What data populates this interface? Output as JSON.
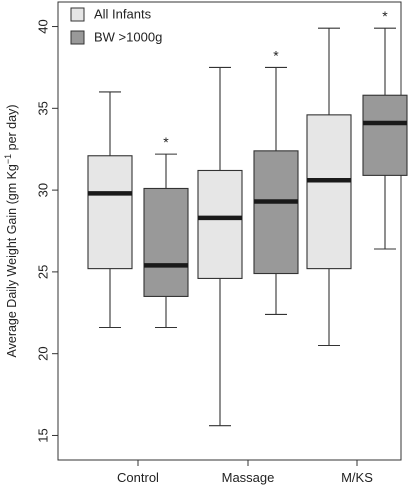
{
  "chart_data": {
    "type": "boxplot",
    "ylabel_main": "Average Daily Weight Gain (gm Kg",
    "ylabel_sup": "−1",
    "ylabel_tail": " per day)",
    "ylim": [
      13.5,
      41.5
    ],
    "yticks": [
      15,
      20,
      25,
      30,
      35,
      40
    ],
    "categories": [
      "Control",
      "Massage",
      "M/KS"
    ],
    "series": [
      {
        "name": "All Infants",
        "color": "#e6e6e6",
        "boxes": [
          {
            "min": 21.6,
            "q1": 25.2,
            "median": 29.8,
            "q3": 32.1,
            "max": 36.0,
            "sig": ""
          },
          {
            "min": 15.6,
            "q1": 24.6,
            "median": 28.3,
            "q3": 31.2,
            "max": 37.5,
            "sig": ""
          },
          {
            "min": 20.5,
            "q1": 25.2,
            "median": 30.6,
            "q3": 34.6,
            "max": 39.9,
            "sig": ""
          }
        ]
      },
      {
        "name": "BW >1000g",
        "color": "#999999",
        "boxes": [
          {
            "min": 21.6,
            "q1": 23.5,
            "median": 25.4,
            "q3": 30.1,
            "max": 32.2,
            "sig": "*"
          },
          {
            "min": 22.4,
            "q1": 24.9,
            "median": 29.3,
            "q3": 32.4,
            "max": 37.5,
            "sig": "*"
          },
          {
            "min": 26.4,
            "q1": 30.9,
            "median": 34.1,
            "q3": 35.8,
            "max": 39.9,
            "sig": "*"
          }
        ]
      }
    ],
    "legend_position": "top-left",
    "grid": false
  }
}
